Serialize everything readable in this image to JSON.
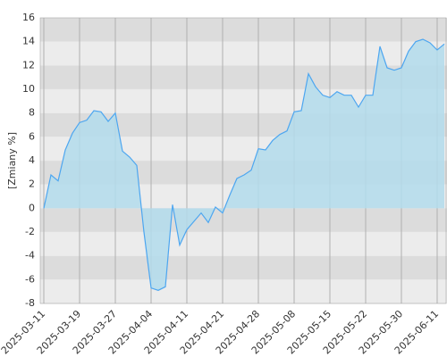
{
  "chart_data": {
    "type": "area",
    "y_label": "[Zmiany %]",
    "categories": [
      "2025-03-11",
      null,
      null,
      null,
      null,
      "2025-03-19",
      null,
      null,
      null,
      null,
      "2025-03-27",
      null,
      null,
      null,
      null,
      "2025-04-04",
      null,
      null,
      null,
      null,
      "2025-04-11",
      null,
      null,
      null,
      null,
      "2025-04-21",
      null,
      null,
      null,
      null,
      "2025-04-28",
      null,
      null,
      null,
      null,
      "2025-05-08",
      null,
      null,
      null,
      null,
      "2025-05-15",
      null,
      null,
      null,
      null,
      "2025-05-22",
      null,
      null,
      null,
      null,
      "2025-05-30",
      null,
      null,
      null,
      null,
      "2025-06-11",
      null
    ],
    "values": [
      0,
      2.8,
      2.3,
      4.9,
      6.3,
      7.2,
      7.4,
      8.2,
      8.1,
      7.3,
      8.0,
      4.8,
      4.3,
      3.6,
      -2.0,
      -6.7,
      -6.9,
      -6.6,
      0.3,
      -3.1,
      -1.8,
      -1.1,
      -0.4,
      -1.2,
      0.1,
      -0.4,
      1.1,
      2.5,
      2.8,
      3.2,
      5.0,
      4.9,
      5.7,
      6.2,
      6.5,
      8.1,
      8.2,
      11.3,
      10.2,
      9.5,
      9.3,
      9.8,
      9.5,
      9.5,
      8.5,
      9.5,
      9.5,
      13.6,
      11.8,
      11.6,
      11.8,
      13.2,
      14.0,
      14.2,
      13.9,
      13.3,
      13.8
    ],
    "color": "#4da6f0",
    "fill": "#b3dcec",
    "ylim": [
      -8,
      16
    ],
    "yticks": [
      -8,
      -6,
      -4,
      -2,
      0,
      2,
      4,
      6,
      8,
      10,
      12,
      14,
      16
    ],
    "grid": true
  }
}
